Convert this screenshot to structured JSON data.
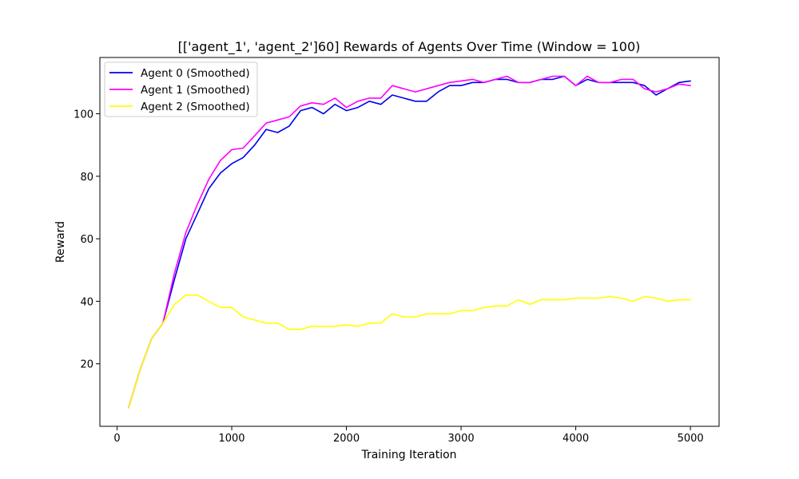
{
  "chart_data": {
    "type": "line",
    "title": "[['agent_1', 'agent_2']60] Rewards of Agents Over Time (Window = 100)",
    "xlabel": "Training Iteration",
    "ylabel": "Reward",
    "xlim": [
      -150,
      5250
    ],
    "ylim": [
      0,
      118
    ],
    "xticks": [
      0,
      1000,
      2000,
      3000,
      4000,
      5000
    ],
    "yticks": [
      20,
      40,
      60,
      80,
      100
    ],
    "grid": false,
    "legend_position": "top-left",
    "x": [
      100,
      200,
      300,
      400,
      500,
      600,
      700,
      800,
      900,
      1000,
      1100,
      1200,
      1300,
      1400,
      1500,
      1600,
      1700,
      1800,
      1900,
      2000,
      2100,
      2200,
      2300,
      2400,
      2500,
      2600,
      2700,
      2800,
      2900,
      3000,
      3100,
      3200,
      3300,
      3400,
      3500,
      3600,
      3700,
      3800,
      3900,
      4000,
      4100,
      4200,
      4300,
      4400,
      4500,
      4600,
      4700,
      4800,
      4900,
      5000
    ],
    "series": [
      {
        "name": "Agent 0 (Smoothed)",
        "color": "#0000ee",
        "values": [
          6,
          18,
          28,
          33,
          47,
          60,
          68,
          76,
          81,
          84,
          86,
          90,
          95,
          94,
          96,
          101,
          102,
          100,
          103,
          101,
          102,
          104,
          103,
          106,
          105,
          104,
          104,
          107,
          109,
          109,
          110,
          110,
          111,
          111,
          110,
          110,
          111,
          111,
          112,
          109,
          111,
          110,
          110,
          110,
          110,
          109,
          106,
          108,
          110,
          110.5
        ]
      },
      {
        "name": "Agent 1 (Smoothed)",
        "color": "#ff00ff",
        "values": [
          6,
          18,
          28,
          33,
          49,
          62,
          71,
          79,
          85,
          88.5,
          89,
          93,
          97,
          98,
          99,
          102.5,
          103.5,
          103,
          105,
          102,
          104,
          105,
          105,
          109,
          108,
          107,
          108,
          109,
          110,
          110.5,
          111,
          110,
          111,
          112,
          110,
          110,
          111,
          112,
          112,
          109,
          112,
          110,
          110,
          111,
          111,
          108,
          107,
          108,
          109.5,
          109
        ]
      },
      {
        "name": "Agent 2 (Smoothed)",
        "color": "#ffff00",
        "values": [
          6,
          18,
          28,
          33,
          39,
          42,
          42,
          40,
          38,
          38,
          35,
          34,
          33,
          33,
          31,
          31,
          32,
          32,
          32,
          32.5,
          32,
          33,
          33,
          36,
          35,
          35,
          36,
          36,
          36,
          37,
          37,
          38,
          38.5,
          38.5,
          40.5,
          39,
          40.5,
          40.5,
          40.5,
          41,
          41,
          41,
          41.5,
          41,
          40,
          41.5,
          41,
          40,
          40.5,
          40.5
        ]
      }
    ]
  }
}
